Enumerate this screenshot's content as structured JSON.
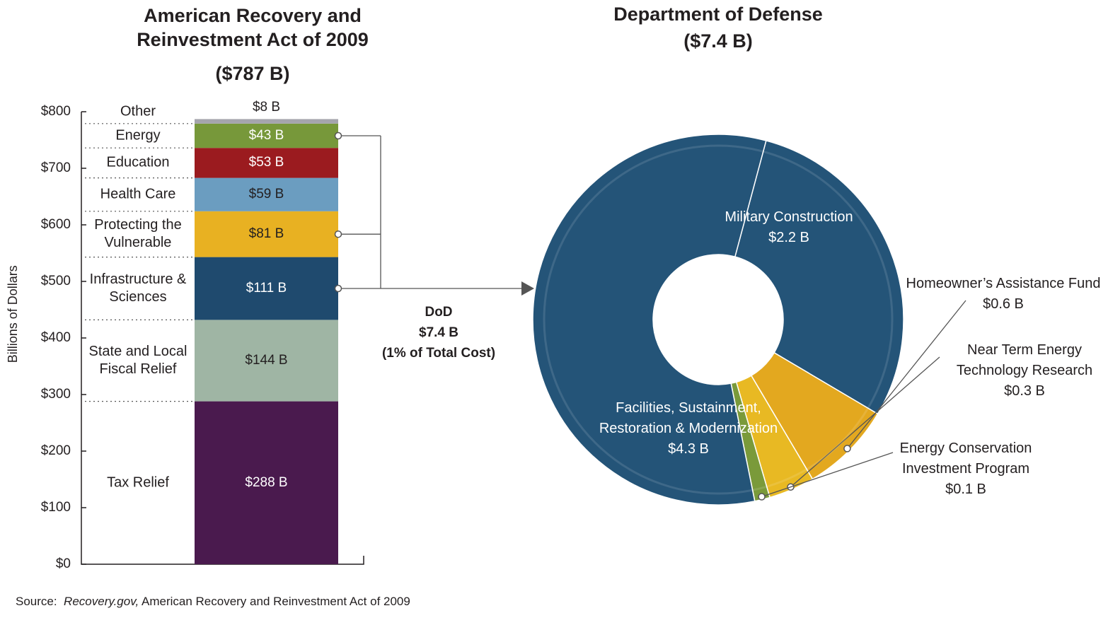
{
  "chart_data": [
    {
      "type": "stacked_bar",
      "title": "American Recovery and Reinvestment Act of 2009",
      "subtitle": "($787 B)",
      "y_label": "Billions of Dollars",
      "ylim": [
        0,
        800
      ],
      "yticks": [
        {
          "value": 0,
          "label": "$0"
        },
        {
          "value": 100,
          "label": "$100"
        },
        {
          "value": 200,
          "label": "$200"
        },
        {
          "value": 300,
          "label": "$300"
        },
        {
          "value": 400,
          "label": "$400"
        },
        {
          "value": 500,
          "label": "$500"
        },
        {
          "value": 600,
          "label": "$600"
        },
        {
          "value": 700,
          "label": "$700"
        },
        {
          "value": 800,
          "label": "$800"
        }
      ],
      "series": [
        {
          "name": "Tax Relief",
          "color": "#4a1a4e",
          "values": [
            288
          ],
          "value_labels": [
            "$288 B"
          ]
        },
        {
          "name": "State and Local Fiscal Relief",
          "color": "#9fb5a4",
          "values": [
            144
          ],
          "value_labels": [
            "$144 B"
          ]
        },
        {
          "name": "Infrastructure & Sciences",
          "color": "#1f4a6e",
          "values": [
            111
          ],
          "value_labels": [
            "$111 B"
          ]
        },
        {
          "name": "Protecting the Vulnerable",
          "color": "#e8b122",
          "values": [
            81
          ],
          "value_labels": [
            "$81 B"
          ]
        },
        {
          "name": "Health Care",
          "color": "#6b9dc0",
          "values": [
            59
          ],
          "value_labels": [
            "$59 B"
          ]
        },
        {
          "name": "Education",
          "color": "#9b1b1f",
          "values": [
            53
          ],
          "value_labels": [
            "$53 B"
          ]
        },
        {
          "name": "Energy",
          "color": "#77983a",
          "values": [
            43
          ],
          "value_labels": [
            "$43 B"
          ]
        },
        {
          "name": "Other",
          "color": "#a5a5ad",
          "values": [
            8
          ],
          "value_labels": [
            "$8 B"
          ]
        }
      ],
      "annotation": [
        "DoD",
        "$7.4 B",
        "(1% of Total Cost)"
      ]
    },
    {
      "type": "donut",
      "title": "Department of Defense",
      "subtitle": "($7.4 B)",
      "categories": [
        "Military Construction",
        "Homeowner’s Assistance Fund",
        "Near Term Energy Technology Research",
        "Energy Conservation Investment Program",
        "Facilities, Sustainment, Restoration & Modernization"
      ],
      "values": [
        2.2,
        0.6,
        0.3,
        0.1,
        4.3
      ],
      "value_labels": [
        "$2.2 B",
        "$0.6 B",
        "$0.3 B",
        "$0.1 B",
        "$4.3 B"
      ],
      "colors": [
        "#245478",
        "#e3a81f",
        "#e8b923",
        "#7a9a3a",
        "#245478"
      ]
    }
  ],
  "source": {
    "label": "Source:",
    "site": "Recovery.gov,",
    "text": "American Recovery and Reinvestment Act of 2009"
  }
}
